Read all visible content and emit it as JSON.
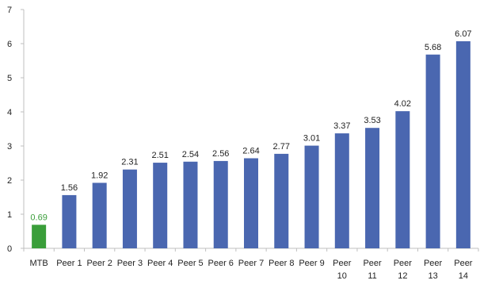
{
  "chart_data": {
    "type": "bar",
    "categories": [
      [
        "MTB"
      ],
      [
        "Peer 1"
      ],
      [
        "Peer 2"
      ],
      [
        "Peer 3"
      ],
      [
        "Peer 4"
      ],
      [
        "Peer 5"
      ],
      [
        "Peer 6"
      ],
      [
        "Peer 7"
      ],
      [
        "Peer 8"
      ],
      [
        "Peer 9"
      ],
      [
        "Peer",
        "10"
      ],
      [
        "Peer",
        "11"
      ],
      [
        "Peer",
        "12"
      ],
      [
        "Peer",
        "13"
      ],
      [
        "Peer",
        "14"
      ]
    ],
    "values": [
      0.69,
      1.56,
      1.92,
      2.31,
      2.51,
      2.54,
      2.56,
      2.64,
      2.77,
      3.01,
      3.37,
      3.53,
      4.02,
      5.68,
      6.07
    ],
    "value_labels": [
      "0.69",
      "1.56",
      "1.92",
      "2.31",
      "2.51",
      "2.54",
      "2.56",
      "2.64",
      "2.77",
      "3.01",
      "3.37",
      "3.53",
      "4.02",
      "5.68",
      "6.07"
    ],
    "ylim": [
      0,
      7
    ],
    "yticks": [
      "0",
      "1",
      "2",
      "3",
      "4",
      "5",
      "6",
      "7"
    ],
    "grid": false,
    "legend": "none",
    "colors": {
      "highlight": "#3a9e3a",
      "highlight_label": "#3a9e3a",
      "bar": "#4a67b0",
      "axis": "#bfbfbf",
      "text": "#1f1f1f"
    },
    "highlight_index": 0
  }
}
